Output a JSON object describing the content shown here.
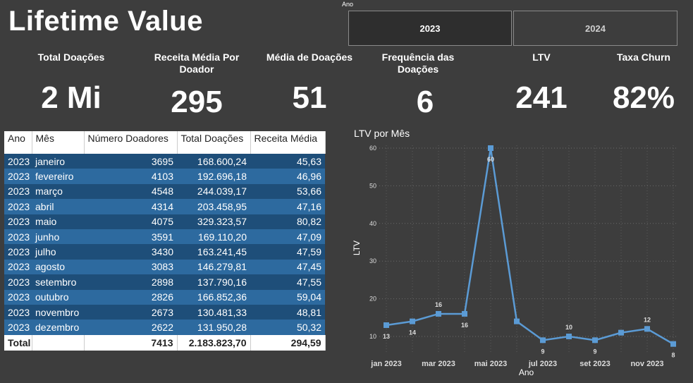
{
  "header": {
    "title": "Lifetime Value"
  },
  "slicer": {
    "label": "Ano",
    "options": [
      "2023",
      "2024"
    ],
    "selected": "2023"
  },
  "kpis": [
    {
      "label": "Total Doações",
      "value": "2 Mi"
    },
    {
      "label": "Receita Média Por Doador",
      "value": "295"
    },
    {
      "label": "Média de Doações",
      "value": "51"
    },
    {
      "label": "Frequência das Doações",
      "value": "6"
    },
    {
      "label": "LTV",
      "value": "241"
    },
    {
      "label": "Taxa Churn",
      "value": "82%"
    }
  ],
  "table": {
    "headers": [
      "Ano",
      "Mês",
      "Número Doadores",
      "Total Doações",
      "Receita Média"
    ],
    "rows": [
      [
        "2023",
        "janeiro",
        "3695",
        "168.600,24",
        "45,63"
      ],
      [
        "2023",
        "fevereiro",
        "4103",
        "192.696,18",
        "46,96"
      ],
      [
        "2023",
        "março",
        "4548",
        "244.039,17",
        "53,66"
      ],
      [
        "2023",
        "abril",
        "4314",
        "203.458,95",
        "47,16"
      ],
      [
        "2023",
        "maio",
        "4075",
        "329.323,57",
        "80,82"
      ],
      [
        "2023",
        "junho",
        "3591",
        "169.110,20",
        "47,09"
      ],
      [
        "2023",
        "julho",
        "3430",
        "163.241,45",
        "47,59"
      ],
      [
        "2023",
        "agosto",
        "3083",
        "146.279,81",
        "47,45"
      ],
      [
        "2023",
        "setembro",
        "2898",
        "137.790,16",
        "47,55"
      ],
      [
        "2023",
        "outubro",
        "2826",
        "166.852,36",
        "59,04"
      ],
      [
        "2023",
        "novembro",
        "2673",
        "130.481,33",
        "48,81"
      ],
      [
        "2023",
        "dezembro",
        "2622",
        "131.950,28",
        "50,32"
      ]
    ],
    "total": [
      "Total",
      "",
      "7413",
      "2.183.823,70",
      "294,59"
    ]
  },
  "chart_data": {
    "type": "line",
    "title": "LTV por Mês",
    "xlabel": "Ano",
    "ylabel": "LTV",
    "x": [
      "jan 2023",
      "fev 2023",
      "mar 2023",
      "abr 2023",
      "mai 2023",
      "jun 2023",
      "jul 2023",
      "ago 2023",
      "set 2023",
      "out 2023",
      "nov 2023",
      "dez 2023"
    ],
    "x_tick_labels": [
      "jan 2023",
      "mar 2023",
      "mai 2023",
      "jul 2023",
      "set 2023",
      "nov 2023"
    ],
    "values": [
      13,
      14,
      16,
      16,
      60,
      14,
      9,
      10,
      9,
      11,
      12,
      8
    ],
    "data_labels": [
      "13",
      "14",
      "16",
      "16",
      "60",
      "",
      "9",
      "10",
      "9",
      "",
      "12",
      "8"
    ],
    "ylim": [
      7,
      60
    ],
    "y_ticks": [
      10,
      20,
      30,
      40,
      50,
      60
    ],
    "grid": true,
    "line_color": "#5b9bd5"
  }
}
